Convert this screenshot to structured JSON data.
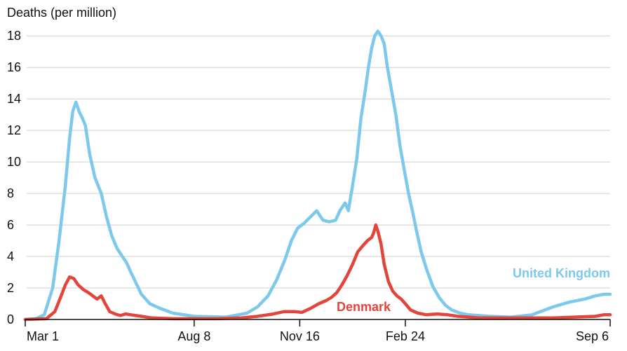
{
  "chart_data": {
    "type": "line",
    "title": "",
    "ylabel": "Deaths (per million)",
    "xlabel": "",
    "ylim": [
      0,
      18.5
    ],
    "yticks": [
      0,
      2,
      4,
      6,
      8,
      10,
      12,
      14,
      16,
      18
    ],
    "xlim": [
      0,
      554
    ],
    "xticks": [
      {
        "day": 0,
        "label": "Mar 1"
      },
      {
        "day": 160,
        "label": "Aug 8"
      },
      {
        "day": 260,
        "label": "Nov 16"
      },
      {
        "day": 360,
        "label": "Feb 24"
      },
      {
        "day": 554,
        "label": "Sep 6"
      }
    ],
    "grid": true,
    "series": [
      {
        "name": "United Kingdom",
        "color": "#7cc9ec",
        "points": [
          [
            0,
            0
          ],
          [
            10,
            0.05
          ],
          [
            18,
            0.3
          ],
          [
            26,
            2.0
          ],
          [
            32,
            5.0
          ],
          [
            38,
            8.5
          ],
          [
            42,
            11.5
          ],
          [
            45,
            13.2
          ],
          [
            48,
            13.8
          ],
          [
            51,
            13.2
          ],
          [
            54,
            12.8
          ],
          [
            57,
            12.3
          ],
          [
            61,
            10.5
          ],
          [
            66,
            9.0
          ],
          [
            72,
            8.0
          ],
          [
            77,
            6.5
          ],
          [
            82,
            5.3
          ],
          [
            87,
            4.5
          ],
          [
            92,
            4.0
          ],
          [
            96,
            3.6
          ],
          [
            100,
            3.0
          ],
          [
            105,
            2.3
          ],
          [
            110,
            1.6
          ],
          [
            118,
            1.0
          ],
          [
            128,
            0.7
          ],
          [
            140,
            0.4
          ],
          [
            160,
            0.2
          ],
          [
            190,
            0.15
          ],
          [
            210,
            0.4
          ],
          [
            220,
            0.8
          ],
          [
            230,
            1.5
          ],
          [
            238,
            2.5
          ],
          [
            246,
            3.8
          ],
          [
            252,
            5.0
          ],
          [
            258,
            5.8
          ],
          [
            264,
            6.1
          ],
          [
            270,
            6.5
          ],
          [
            276,
            6.9
          ],
          [
            282,
            6.3
          ],
          [
            288,
            6.2
          ],
          [
            294,
            6.3
          ],
          [
            298,
            6.9
          ],
          [
            303,
            7.4
          ],
          [
            306,
            6.9
          ],
          [
            310,
            8.5
          ],
          [
            314,
            10.2
          ],
          [
            318,
            12.8
          ],
          [
            322,
            14.5
          ],
          [
            325,
            16.0
          ],
          [
            328,
            17.2
          ],
          [
            331,
            18.0
          ],
          [
            334,
            18.3
          ],
          [
            337,
            18.0
          ],
          [
            340,
            17.5
          ],
          [
            343,
            16.0
          ],
          [
            347,
            14.5
          ],
          [
            351,
            13.0
          ],
          [
            355,
            11.0
          ],
          [
            359,
            9.5
          ],
          [
            363,
            8.0
          ],
          [
            367,
            6.8
          ],
          [
            371,
            5.5
          ],
          [
            375,
            4.3
          ],
          [
            380,
            3.2
          ],
          [
            386,
            2.1
          ],
          [
            392,
            1.4
          ],
          [
            398,
            0.9
          ],
          [
            404,
            0.6
          ],
          [
            412,
            0.4
          ],
          [
            420,
            0.3
          ],
          [
            440,
            0.2
          ],
          [
            460,
            0.15
          ],
          [
            480,
            0.3
          ],
          [
            500,
            0.8
          ],
          [
            515,
            1.1
          ],
          [
            530,
            1.3
          ],
          [
            540,
            1.5
          ],
          [
            548,
            1.6
          ],
          [
            554,
            1.6
          ]
        ]
      },
      {
        "name": "Denmark",
        "color": "#e2453c",
        "points": [
          [
            0,
            0
          ],
          [
            20,
            0.05
          ],
          [
            28,
            0.5
          ],
          [
            34,
            1.5
          ],
          [
            38,
            2.2
          ],
          [
            42,
            2.7
          ],
          [
            46,
            2.6
          ],
          [
            50,
            2.2
          ],
          [
            55,
            1.9
          ],
          [
            60,
            1.7
          ],
          [
            64,
            1.5
          ],
          [
            68,
            1.3
          ],
          [
            72,
            1.5
          ],
          [
            75,
            1.1
          ],
          [
            80,
            0.5
          ],
          [
            85,
            0.35
          ],
          [
            90,
            0.25
          ],
          [
            95,
            0.35
          ],
          [
            100,
            0.3
          ],
          [
            110,
            0.2
          ],
          [
            120,
            0.1
          ],
          [
            140,
            0.05
          ],
          [
            180,
            0.05
          ],
          [
            205,
            0.1
          ],
          [
            220,
            0.2
          ],
          [
            235,
            0.35
          ],
          [
            245,
            0.5
          ],
          [
            255,
            0.5
          ],
          [
            262,
            0.45
          ],
          [
            270,
            0.7
          ],
          [
            278,
            1.0
          ],
          [
            285,
            1.2
          ],
          [
            290,
            1.4
          ],
          [
            295,
            1.7
          ],
          [
            300,
            2.2
          ],
          [
            305,
            2.8
          ],
          [
            310,
            3.5
          ],
          [
            315,
            4.3
          ],
          [
            320,
            4.7
          ],
          [
            324,
            5.0
          ],
          [
            328,
            5.2
          ],
          [
            330,
            5.5
          ],
          [
            332,
            6.0
          ],
          [
            334,
            5.6
          ],
          [
            337,
            4.8
          ],
          [
            340,
            3.5
          ],
          [
            344,
            2.4
          ],
          [
            348,
            1.8
          ],
          [
            352,
            1.5
          ],
          [
            356,
            1.3
          ],
          [
            360,
            1.0
          ],
          [
            365,
            0.6
          ],
          [
            372,
            0.4
          ],
          [
            380,
            0.3
          ],
          [
            390,
            0.35
          ],
          [
            400,
            0.3
          ],
          [
            410,
            0.2
          ],
          [
            430,
            0.1
          ],
          [
            460,
            0.1
          ],
          [
            500,
            0.1
          ],
          [
            520,
            0.15
          ],
          [
            540,
            0.2
          ],
          [
            548,
            0.3
          ],
          [
            554,
            0.3
          ]
        ]
      }
    ]
  }
}
